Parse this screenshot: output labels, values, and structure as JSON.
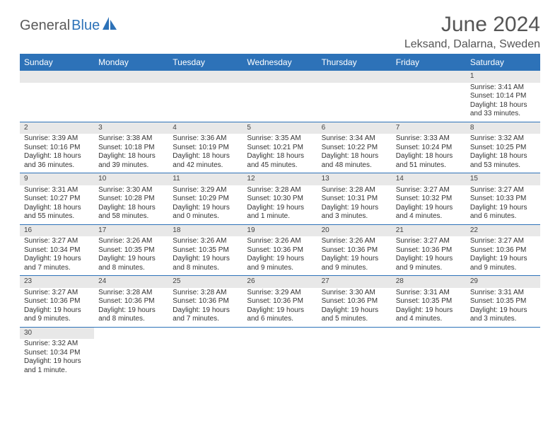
{
  "brand": {
    "part1": "General",
    "part2": "Blue"
  },
  "title": "June 2024",
  "location": "Leksand, Dalarna, Sweden",
  "header_bg": "#2d72b8",
  "header_fg": "#ffffff",
  "daynum_bg": "#e8e8e8",
  "border_color": "#2d72b8",
  "dow": [
    "Sunday",
    "Monday",
    "Tuesday",
    "Wednesday",
    "Thursday",
    "Friday",
    "Saturday"
  ],
  "weeks": [
    [
      null,
      null,
      null,
      null,
      null,
      null,
      {
        "n": "1",
        "sr": "Sunrise: 3:41 AM",
        "ss": "Sunset: 10:14 PM",
        "dl": "Daylight: 18 hours and 33 minutes."
      }
    ],
    [
      {
        "n": "2",
        "sr": "Sunrise: 3:39 AM",
        "ss": "Sunset: 10:16 PM",
        "dl": "Daylight: 18 hours and 36 minutes."
      },
      {
        "n": "3",
        "sr": "Sunrise: 3:38 AM",
        "ss": "Sunset: 10:18 PM",
        "dl": "Daylight: 18 hours and 39 minutes."
      },
      {
        "n": "4",
        "sr": "Sunrise: 3:36 AM",
        "ss": "Sunset: 10:19 PM",
        "dl": "Daylight: 18 hours and 42 minutes."
      },
      {
        "n": "5",
        "sr": "Sunrise: 3:35 AM",
        "ss": "Sunset: 10:21 PM",
        "dl": "Daylight: 18 hours and 45 minutes."
      },
      {
        "n": "6",
        "sr": "Sunrise: 3:34 AM",
        "ss": "Sunset: 10:22 PM",
        "dl": "Daylight: 18 hours and 48 minutes."
      },
      {
        "n": "7",
        "sr": "Sunrise: 3:33 AM",
        "ss": "Sunset: 10:24 PM",
        "dl": "Daylight: 18 hours and 51 minutes."
      },
      {
        "n": "8",
        "sr": "Sunrise: 3:32 AM",
        "ss": "Sunset: 10:25 PM",
        "dl": "Daylight: 18 hours and 53 minutes."
      }
    ],
    [
      {
        "n": "9",
        "sr": "Sunrise: 3:31 AM",
        "ss": "Sunset: 10:27 PM",
        "dl": "Daylight: 18 hours and 55 minutes."
      },
      {
        "n": "10",
        "sr": "Sunrise: 3:30 AM",
        "ss": "Sunset: 10:28 PM",
        "dl": "Daylight: 18 hours and 58 minutes."
      },
      {
        "n": "11",
        "sr": "Sunrise: 3:29 AM",
        "ss": "Sunset: 10:29 PM",
        "dl": "Daylight: 19 hours and 0 minutes."
      },
      {
        "n": "12",
        "sr": "Sunrise: 3:28 AM",
        "ss": "Sunset: 10:30 PM",
        "dl": "Daylight: 19 hours and 1 minute."
      },
      {
        "n": "13",
        "sr": "Sunrise: 3:28 AM",
        "ss": "Sunset: 10:31 PM",
        "dl": "Daylight: 19 hours and 3 minutes."
      },
      {
        "n": "14",
        "sr": "Sunrise: 3:27 AM",
        "ss": "Sunset: 10:32 PM",
        "dl": "Daylight: 19 hours and 4 minutes."
      },
      {
        "n": "15",
        "sr": "Sunrise: 3:27 AM",
        "ss": "Sunset: 10:33 PM",
        "dl": "Daylight: 19 hours and 6 minutes."
      }
    ],
    [
      {
        "n": "16",
        "sr": "Sunrise: 3:27 AM",
        "ss": "Sunset: 10:34 PM",
        "dl": "Daylight: 19 hours and 7 minutes."
      },
      {
        "n": "17",
        "sr": "Sunrise: 3:26 AM",
        "ss": "Sunset: 10:35 PM",
        "dl": "Daylight: 19 hours and 8 minutes."
      },
      {
        "n": "18",
        "sr": "Sunrise: 3:26 AM",
        "ss": "Sunset: 10:35 PM",
        "dl": "Daylight: 19 hours and 8 minutes."
      },
      {
        "n": "19",
        "sr": "Sunrise: 3:26 AM",
        "ss": "Sunset: 10:36 PM",
        "dl": "Daylight: 19 hours and 9 minutes."
      },
      {
        "n": "20",
        "sr": "Sunrise: 3:26 AM",
        "ss": "Sunset: 10:36 PM",
        "dl": "Daylight: 19 hours and 9 minutes."
      },
      {
        "n": "21",
        "sr": "Sunrise: 3:27 AM",
        "ss": "Sunset: 10:36 PM",
        "dl": "Daylight: 19 hours and 9 minutes."
      },
      {
        "n": "22",
        "sr": "Sunrise: 3:27 AM",
        "ss": "Sunset: 10:36 PM",
        "dl": "Daylight: 19 hours and 9 minutes."
      }
    ],
    [
      {
        "n": "23",
        "sr": "Sunrise: 3:27 AM",
        "ss": "Sunset: 10:36 PM",
        "dl": "Daylight: 19 hours and 9 minutes."
      },
      {
        "n": "24",
        "sr": "Sunrise: 3:28 AM",
        "ss": "Sunset: 10:36 PM",
        "dl": "Daylight: 19 hours and 8 minutes."
      },
      {
        "n": "25",
        "sr": "Sunrise: 3:28 AM",
        "ss": "Sunset: 10:36 PM",
        "dl": "Daylight: 19 hours and 7 minutes."
      },
      {
        "n": "26",
        "sr": "Sunrise: 3:29 AM",
        "ss": "Sunset: 10:36 PM",
        "dl": "Daylight: 19 hours and 6 minutes."
      },
      {
        "n": "27",
        "sr": "Sunrise: 3:30 AM",
        "ss": "Sunset: 10:36 PM",
        "dl": "Daylight: 19 hours and 5 minutes."
      },
      {
        "n": "28",
        "sr": "Sunrise: 3:31 AM",
        "ss": "Sunset: 10:35 PM",
        "dl": "Daylight: 19 hours and 4 minutes."
      },
      {
        "n": "29",
        "sr": "Sunrise: 3:31 AM",
        "ss": "Sunset: 10:35 PM",
        "dl": "Daylight: 19 hours and 3 minutes."
      }
    ],
    [
      {
        "n": "30",
        "sr": "Sunrise: 3:32 AM",
        "ss": "Sunset: 10:34 PM",
        "dl": "Daylight: 19 hours and 1 minute."
      },
      null,
      null,
      null,
      null,
      null,
      null
    ]
  ]
}
